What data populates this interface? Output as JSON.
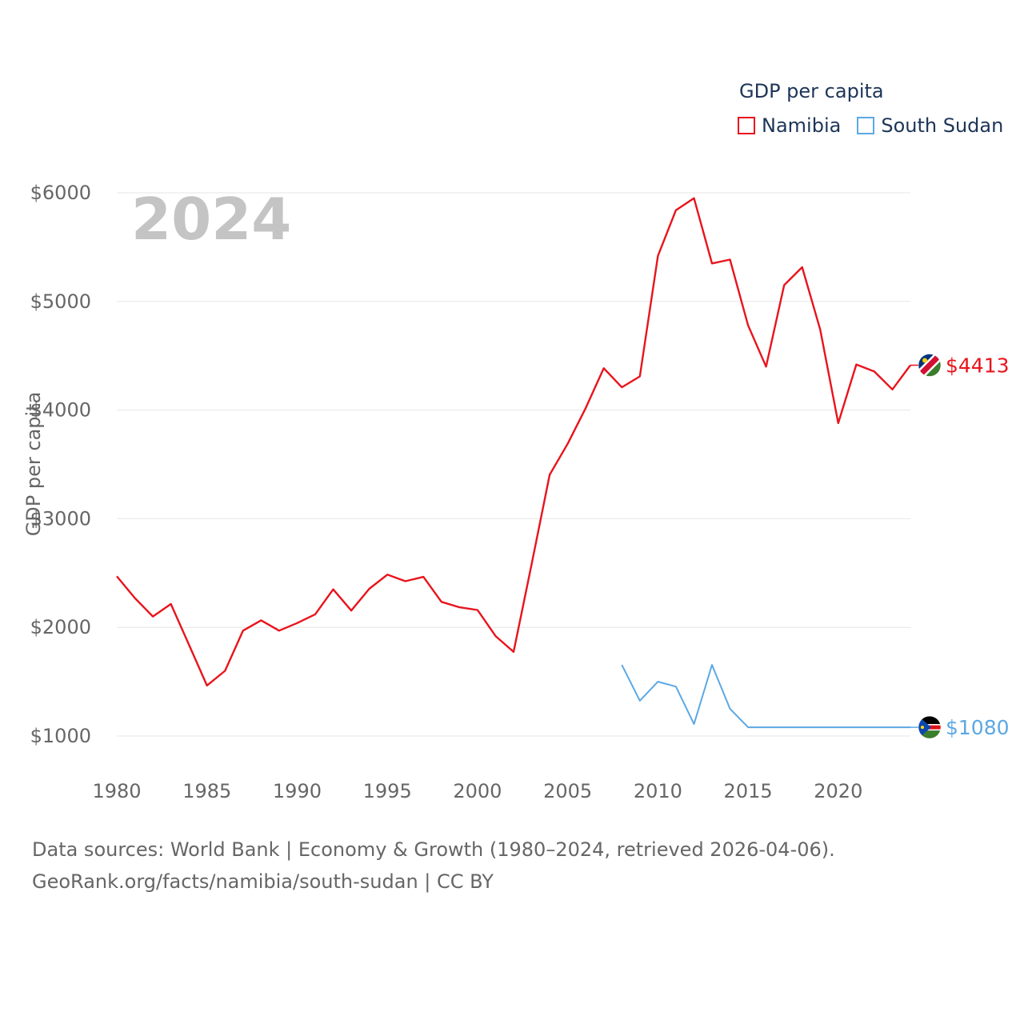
{
  "chart_data": {
    "type": "line",
    "title": "GDP per capita",
    "year_label": "2024",
    "xlabel": "",
    "ylabel": "GDP per capita",
    "xlim": [
      1980,
      2024
    ],
    "ylim": [
      1000,
      6000
    ],
    "x_ticks": [
      1980,
      1985,
      1990,
      1995,
      2000,
      2005,
      2010,
      2015,
      2020
    ],
    "y_ticks": [
      {
        "value": 1000,
        "label": "$1000"
      },
      {
        "value": 2000,
        "label": "$2000"
      },
      {
        "value": 3000,
        "label": "$3000"
      },
      {
        "value": 4000,
        "label": "$4000"
      },
      {
        "value": 5000,
        "label": "$5000"
      },
      {
        "value": 6000,
        "label": "$6000"
      }
    ],
    "grid": true,
    "legend_title": "GDP per capita",
    "series": [
      {
        "name": "Namibia",
        "color": "#e8141c",
        "end_label": "$4413",
        "flag_icon": "namibia-flag-icon",
        "points": [
          [
            1980,
            2470
          ],
          [
            1981,
            2270
          ],
          [
            1982,
            2100
          ],
          [
            1983,
            2215
          ],
          [
            1984,
            1840
          ],
          [
            1985,
            1465
          ],
          [
            1986,
            1600
          ],
          [
            1987,
            1970
          ],
          [
            1988,
            2065
          ],
          [
            1989,
            1970
          ],
          [
            1990,
            2040
          ],
          [
            1991,
            2120
          ],
          [
            1992,
            2350
          ],
          [
            1993,
            2155
          ],
          [
            1994,
            2355
          ],
          [
            1995,
            2485
          ],
          [
            1996,
            2425
          ],
          [
            1997,
            2465
          ],
          [
            1998,
            2235
          ],
          [
            1999,
            2185
          ],
          [
            2000,
            2160
          ],
          [
            2001,
            1920
          ],
          [
            2002,
            1775
          ],
          [
            2003,
            2580
          ],
          [
            2004,
            3405
          ],
          [
            2005,
            3690
          ],
          [
            2006,
            4020
          ],
          [
            2007,
            4385
          ],
          [
            2008,
            4210
          ],
          [
            2009,
            4310
          ],
          [
            2010,
            5420
          ],
          [
            2011,
            5840
          ],
          [
            2012,
            5950
          ],
          [
            2013,
            5350
          ],
          [
            2014,
            5385
          ],
          [
            2015,
            4780
          ],
          [
            2016,
            4400
          ],
          [
            2017,
            5150
          ],
          [
            2018,
            5315
          ],
          [
            2019,
            4740
          ],
          [
            2020,
            3880
          ],
          [
            2021,
            4420
          ],
          [
            2022,
            4355
          ],
          [
            2023,
            4190
          ],
          [
            2024,
            4413
          ]
        ]
      },
      {
        "name": "South Sudan",
        "color": "#5ca8e4",
        "end_label": "$1080",
        "flag_icon": "south-sudan-flag-icon",
        "points": [
          [
            2008,
            1655
          ],
          [
            2009,
            1325
          ],
          [
            2010,
            1500
          ],
          [
            2011,
            1455
          ],
          [
            2012,
            1110
          ],
          [
            2013,
            1655
          ],
          [
            2014,
            1250
          ],
          [
            2015,
            1080
          ],
          [
            2016,
            1080
          ],
          [
            2017,
            1080
          ],
          [
            2018,
            1080
          ],
          [
            2019,
            1080
          ],
          [
            2020,
            1080
          ],
          [
            2021,
            1080
          ],
          [
            2022,
            1080
          ],
          [
            2023,
            1080
          ],
          [
            2024,
            1080
          ]
        ]
      }
    ]
  },
  "footer": {
    "source_line": "Data sources: World Bank | Economy & Growth (1980–2024, retrieved 2026-04-06).",
    "url_line": "GeoRank.org/facts/namibia/south-sudan | CC BY"
  }
}
